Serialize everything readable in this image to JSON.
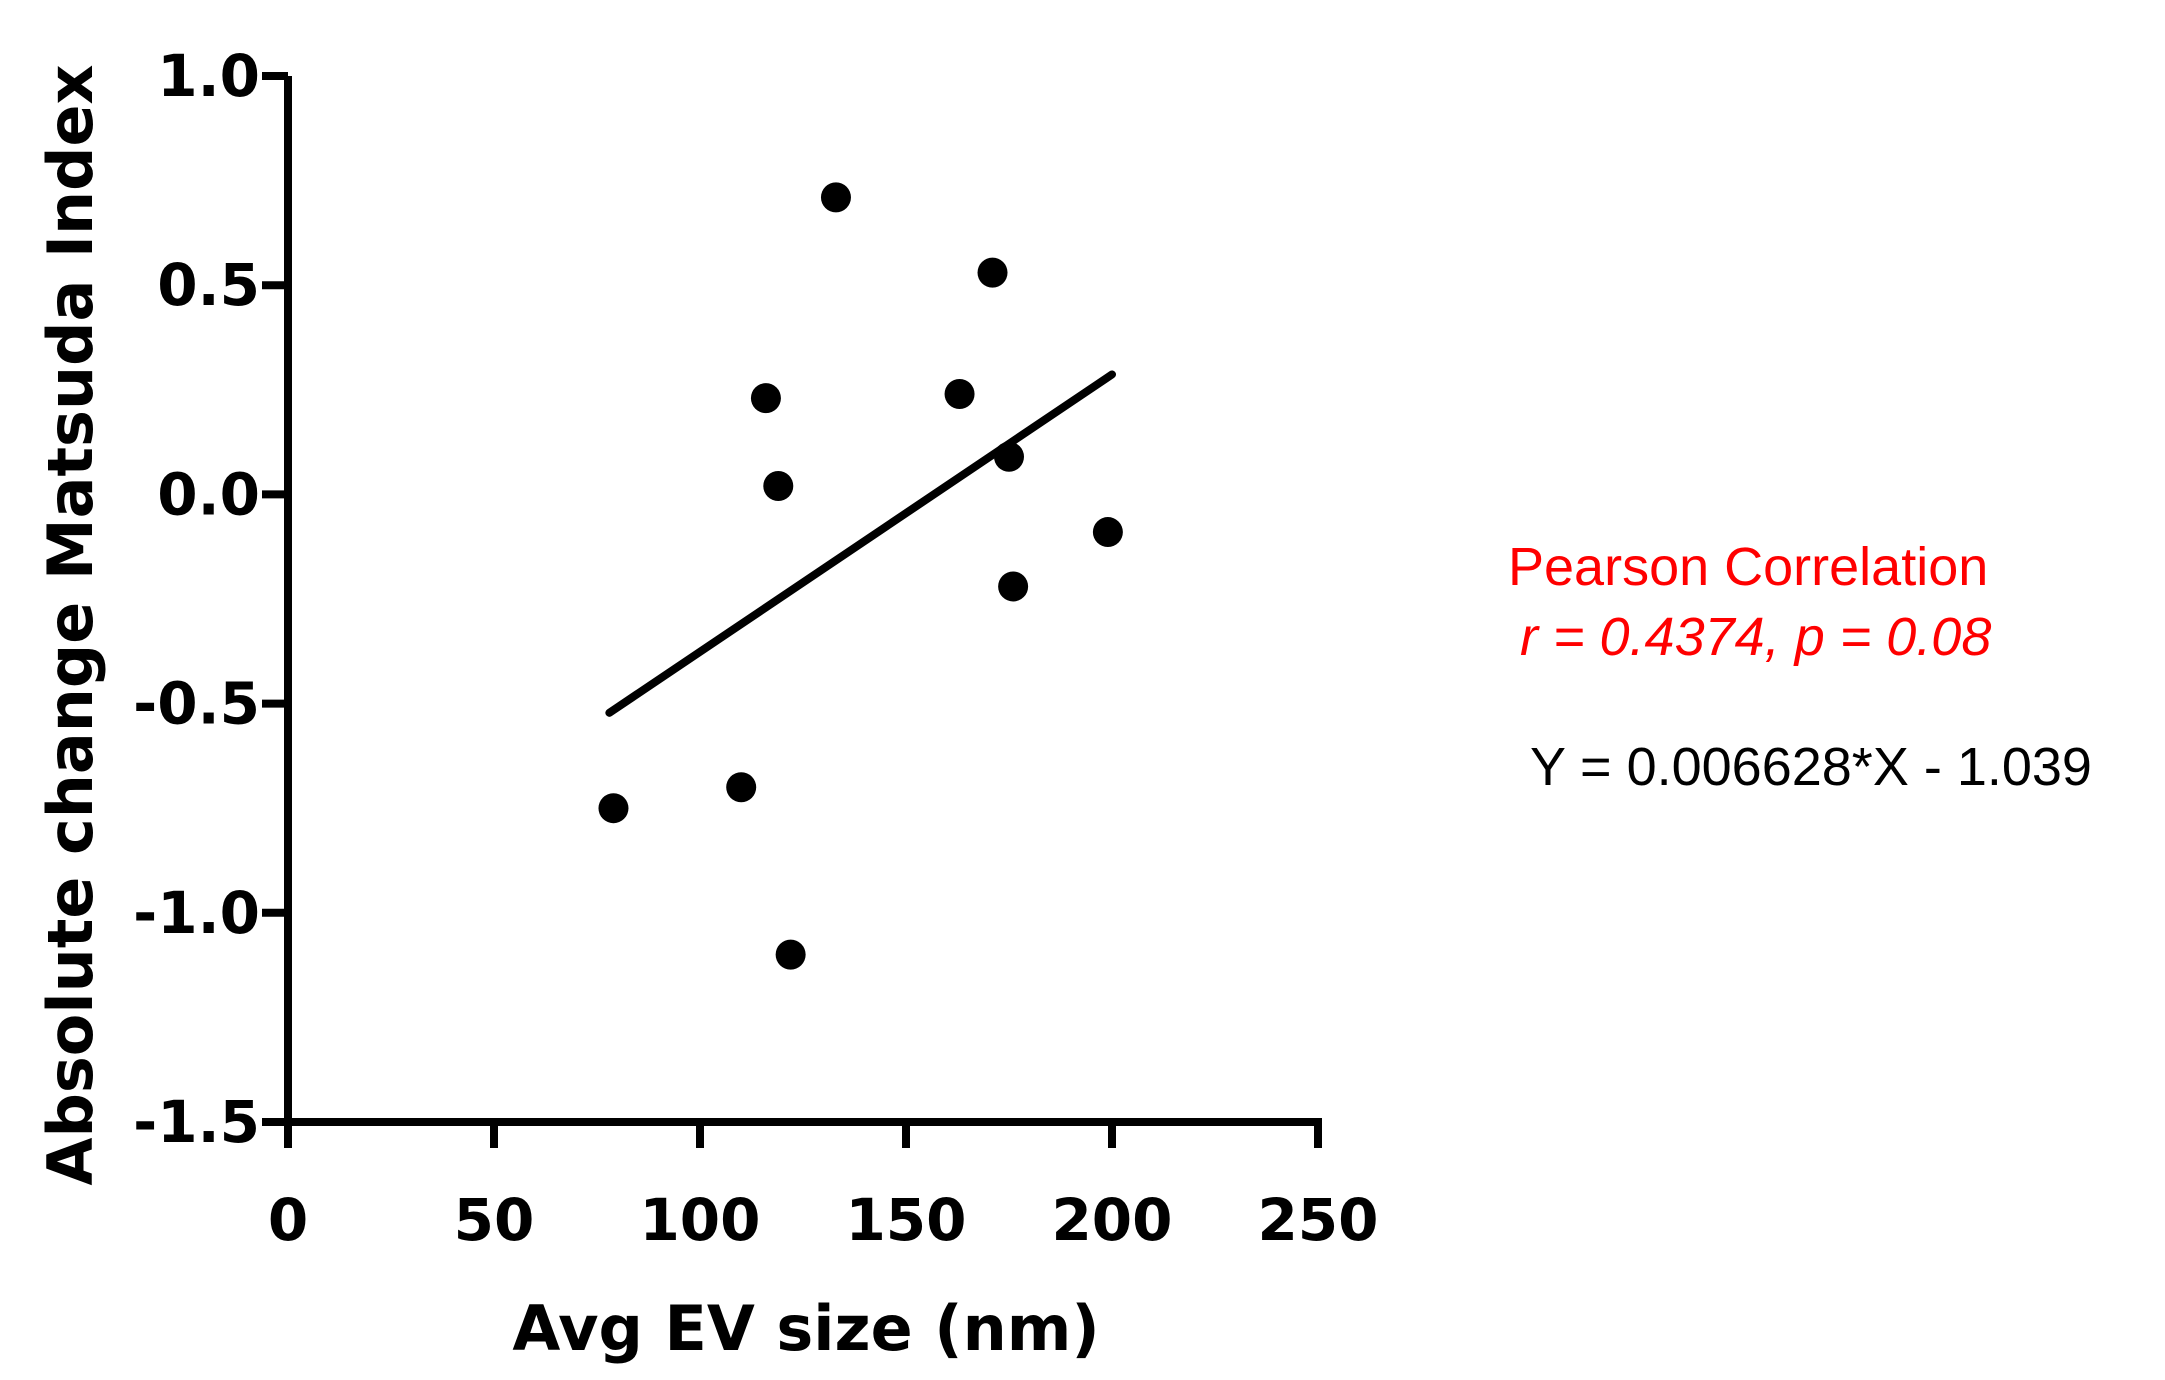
{
  "chart_data": {
    "type": "scatter",
    "xlabel": "Avg EV size (nm)",
    "ylabel": "Absolute change Matsuda Index",
    "xlim": [
      0,
      250
    ],
    "ylim": [
      -1.5,
      1.0
    ],
    "x_ticks": [
      0,
      50,
      100,
      150,
      200,
      250
    ],
    "x_tick_labels": [
      "0",
      "50",
      "100",
      "150",
      "200",
      "250"
    ],
    "y_ticks": [
      1.0,
      0.5,
      0.0,
      -0.5,
      -1.0,
      -1.5
    ],
    "y_tick_labels": [
      "1.0",
      "0.5",
      "0.0",
      "-0.5",
      "-1.0",
      "-1.5"
    ],
    "grid": false,
    "points": [
      {
        "x": 79,
        "y": -0.75
      },
      {
        "x": 110,
        "y": -0.7
      },
      {
        "x": 116,
        "y": 0.23
      },
      {
        "x": 119,
        "y": 0.02
      },
      {
        "x": 122,
        "y": -1.1
      },
      {
        "x": 133,
        "y": 0.71
      },
      {
        "x": 163,
        "y": 0.24
      },
      {
        "x": 171,
        "y": 0.53
      },
      {
        "x": 175,
        "y": 0.09
      },
      {
        "x": 176,
        "y": -0.22
      },
      {
        "x": 199,
        "y": -0.09
      }
    ],
    "fit_line": {
      "slope": 0.006628,
      "intercept": -1.039,
      "x_range": [
        78,
        200
      ]
    },
    "marker_color": "#000000",
    "line_color": "#000000"
  },
  "annotation": {
    "title": "Pearson Correlation",
    "stats": "r = 0.4374, p = 0.08",
    "equation": "Y = 0.006628*X - 1.039",
    "highlight_color": "#ff0000"
  }
}
